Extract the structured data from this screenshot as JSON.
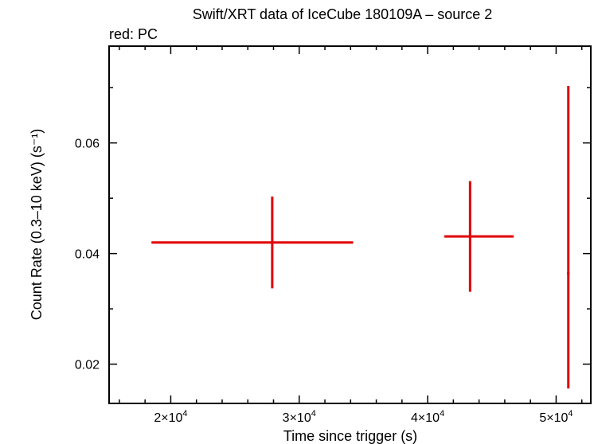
{
  "chart_data": {
    "type": "scatter",
    "title": "Swift/XRT data of IceCube 180109A – source 2",
    "subtitle": "red: PC",
    "xlabel": "Time since trigger (s)",
    "ylabel": "Count Rate (0.3–10 keV) (s⁻¹)",
    "xlim": [
      15200,
      52700
    ],
    "ylim": [
      0.0129,
      0.0775
    ],
    "x_ticks": [
      {
        "value": 20000,
        "mant": "2",
        "exp": "4"
      },
      {
        "value": 30000,
        "mant": "3",
        "exp": "4"
      },
      {
        "value": 40000,
        "mant": "4",
        "exp": "4"
      },
      {
        "value": 50000,
        "mant": "5",
        "exp": "4"
      }
    ],
    "y_ticks": [
      {
        "value": 0.02,
        "label": "0.02"
      },
      {
        "value": 0.04,
        "label": "0.04"
      },
      {
        "value": 0.06,
        "label": "0.06"
      }
    ],
    "series": [
      {
        "color": "#e00000",
        "points": [
          {
            "x": 27900,
            "y": 0.042,
            "x_lo": 18500,
            "x_hi": 34200,
            "y_lo": 0.0337,
            "y_hi": 0.0503
          },
          {
            "x": 43300,
            "y": 0.0431,
            "x_lo": 41300,
            "x_hi": 46700,
            "y_lo": 0.0331,
            "y_hi": 0.0531
          },
          {
            "x": 50950,
            "y": 0.0364,
            "x_lo": 50850,
            "x_hi": 51050,
            "y_lo": 0.0156,
            "y_hi": 0.0703
          }
        ]
      }
    ],
    "grid": false
  }
}
